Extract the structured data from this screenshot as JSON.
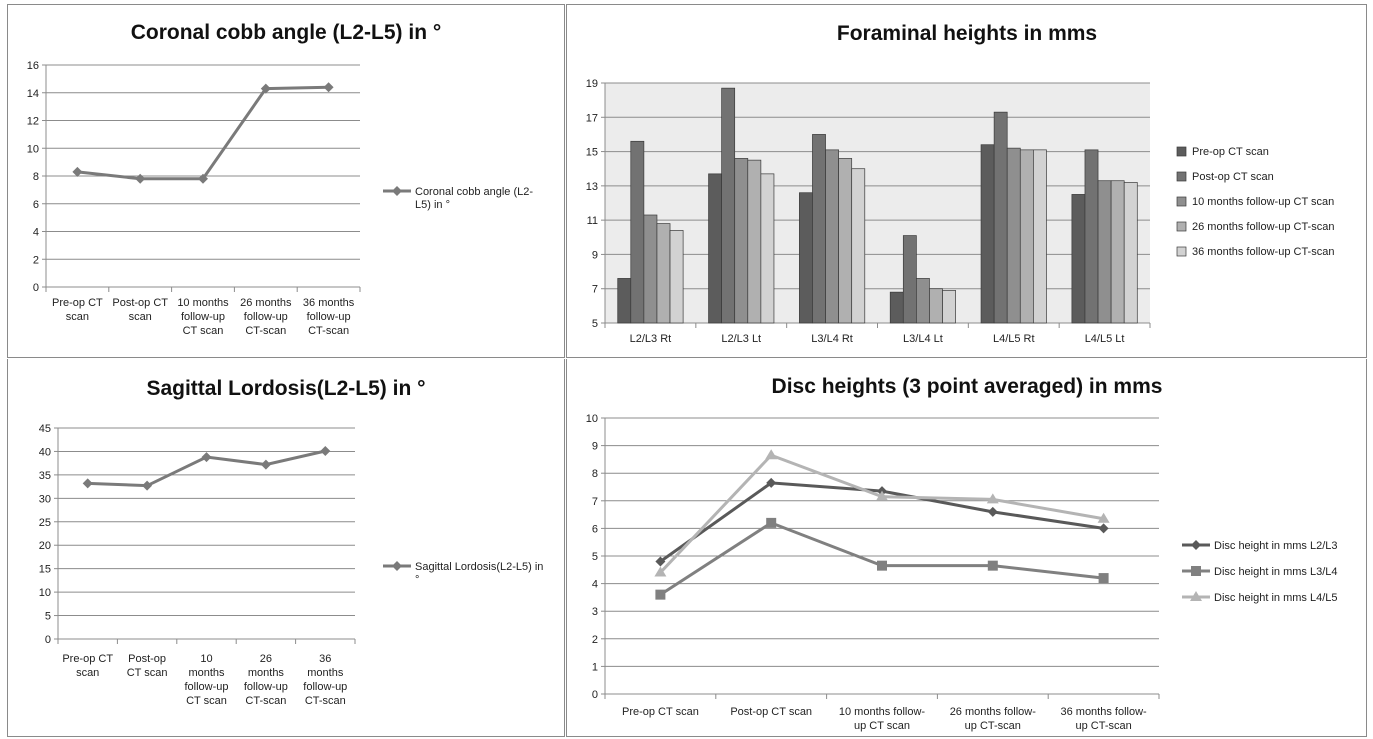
{
  "chart_data": [
    {
      "id": "cobb",
      "type": "line",
      "title": "Coronal cobb angle (L2-L5) in °",
      "categories": [
        [
          "Pre-op CT",
          "scan"
        ],
        [
          "Post-op CT",
          "scan"
        ],
        [
          "10 months",
          "follow-up",
          "CT scan"
        ],
        [
          "26 months",
          "follow-up",
          "CT-scan"
        ],
        [
          "36 months",
          "follow-up",
          "CT-scan"
        ]
      ],
      "ylim": [
        0,
        16
      ],
      "ystep": 2,
      "grid": true,
      "legend": "right",
      "series": [
        {
          "name": [
            "Coronal cobb angle (L2-",
            "L5) in °"
          ],
          "values": [
            8.3,
            7.8,
            7.8,
            14.3,
            14.4
          ],
          "color": "#7a7a7a",
          "marker": "diamond"
        }
      ]
    },
    {
      "id": "foraminal",
      "type": "bar",
      "title": "Foraminal heights in mms",
      "categories": [
        [
          "L2/L3 Rt"
        ],
        [
          "L2/L3 Lt"
        ],
        [
          "L3/L4 Rt"
        ],
        [
          "L3/L4 Lt"
        ],
        [
          "L4/L5 Rt"
        ],
        [
          "L4/L5 Lt"
        ]
      ],
      "ylim": [
        5,
        19
      ],
      "ystep": 2,
      "grid": true,
      "legend": "right",
      "series": [
        {
          "name": [
            "Pre-op CT scan"
          ],
          "values": [
            7.6,
            13.7,
            12.6,
            6.8,
            15.4,
            12.5
          ],
          "color": "#5c5c5c"
        },
        {
          "name": [
            "Post-op CT scan"
          ],
          "values": [
            15.6,
            18.7,
            16.0,
            10.1,
            17.3,
            15.1
          ],
          "color": "#727272"
        },
        {
          "name": [
            "10 months follow-up CT scan"
          ],
          "values": [
            11.3,
            14.6,
            15.1,
            7.6,
            15.2,
            13.3
          ],
          "color": "#8f8f8f"
        },
        {
          "name": [
            "26 months follow-up CT-scan"
          ],
          "values": [
            10.8,
            14.5,
            14.6,
            7.0,
            15.1,
            13.3
          ],
          "color": "#b0b0b0"
        },
        {
          "name": [
            "36 months follow-up CT-scan"
          ],
          "values": [
            10.4,
            13.7,
            14.0,
            6.9,
            15.1,
            13.2
          ],
          "color": "#d2d2d2"
        }
      ]
    },
    {
      "id": "lordosis",
      "type": "line",
      "title": "Sagittal Lordosis(L2-L5) in °",
      "categories": [
        [
          "Pre-op CT",
          "scan"
        ],
        [
          "Post-op",
          "CT scan"
        ],
        [
          "10",
          "months",
          "follow-up",
          "CT scan"
        ],
        [
          "26",
          "months",
          "follow-up",
          "CT-scan"
        ],
        [
          "36",
          "months",
          "follow-up",
          "CT-scan"
        ]
      ],
      "ylim": [
        0,
        45
      ],
      "ystep": 5,
      "grid": true,
      "legend": "right",
      "series": [
        {
          "name": [
            "Sagittal Lordosis(L2-L5) in",
            "°"
          ],
          "values": [
            33.2,
            32.7,
            38.8,
            37.2,
            40.1
          ],
          "color": "#7a7a7a",
          "marker": "diamond"
        }
      ]
    },
    {
      "id": "disc",
      "type": "line",
      "title": "Disc heights (3 point averaged) in mms",
      "categories": [
        [
          "Pre-op CT scan"
        ],
        [
          "Post-op CT scan"
        ],
        [
          "10 months follow-",
          "up CT scan"
        ],
        [
          "26 months follow-",
          "up CT-scan"
        ],
        [
          "36 months follow-",
          "up CT-scan"
        ]
      ],
      "ylim": [
        0,
        10
      ],
      "ystep": 1,
      "grid": true,
      "legend": "right",
      "series": [
        {
          "name": [
            "Disc height in mms L2/L3"
          ],
          "values": [
            4.8,
            7.65,
            7.35,
            6.6,
            6.0
          ],
          "color": "#595959",
          "marker": "diamond"
        },
        {
          "name": [
            "Disc height in mms L3/L4"
          ],
          "values": [
            3.6,
            6.2,
            4.65,
            4.65,
            4.2
          ],
          "color": "#808080",
          "marker": "square"
        },
        {
          "name": [
            "Disc height in mms L4/L5"
          ],
          "values": [
            4.4,
            8.65,
            7.15,
            7.05,
            6.35
          ],
          "color": "#b4b4b4",
          "marker": "triangle"
        }
      ]
    }
  ]
}
